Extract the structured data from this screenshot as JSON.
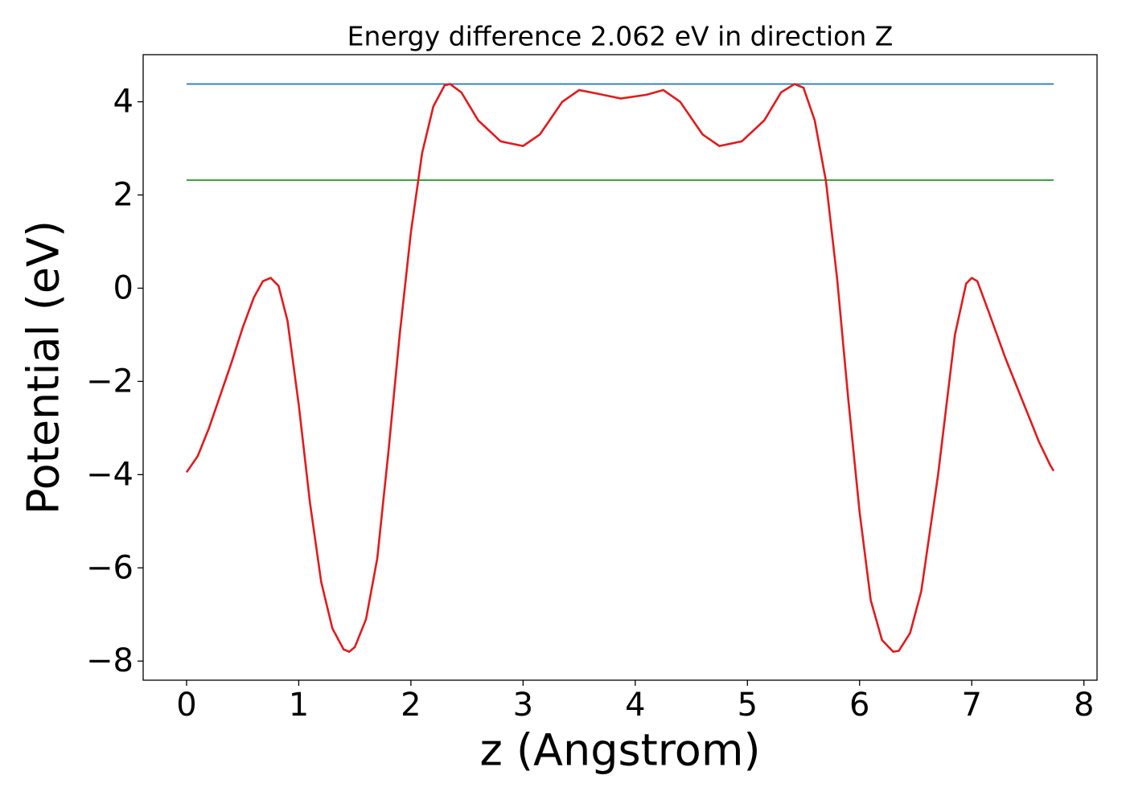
{
  "chart_data": {
    "type": "line",
    "title": "Energy difference 2.062 eV in direction Z",
    "xlabel": "z (Angstrom)",
    "ylabel": "Potential (eV)",
    "xlim": [
      -0.387,
      8.117
    ],
    "ylim": [
      -8.41,
      5.01
    ],
    "xticks": [
      0,
      1,
      2,
      3,
      4,
      5,
      6,
      7,
      8
    ],
    "yticks": [
      {
        "value": -8,
        "label": "−8"
      },
      {
        "value": -6,
        "label": "−6"
      },
      {
        "value": -4,
        "label": "−4"
      },
      {
        "value": -2,
        "label": "−2"
      },
      0,
      2,
      4
    ],
    "grid": false,
    "series": [
      {
        "color": "#1f77b4",
        "x": [
          0,
          7.73
        ],
        "values": [
          4.38,
          4.38
        ]
      },
      {
        "color": "#2ca02c",
        "x": [
          0,
          7.73
        ],
        "values": [
          2.318,
          2.318
        ]
      },
      {
        "color": "#e31a1c",
        "x": [
          0,
          0.1,
          0.2,
          0.3,
          0.4,
          0.5,
          0.6,
          0.68,
          0.75,
          0.82,
          0.9,
          1.0,
          1.1,
          1.2,
          1.3,
          1.4,
          1.45,
          1.5,
          1.6,
          1.7,
          1.8,
          1.9,
          2.0,
          2.1,
          2.2,
          2.3,
          2.35,
          2.45,
          2.6,
          2.8,
          3.0,
          3.15,
          3.35,
          3.5,
          3.65,
          3.87,
          4.1,
          4.25,
          4.4,
          4.6,
          4.75,
          4.95,
          5.15,
          5.3,
          5.42,
          5.5,
          5.6,
          5.7,
          5.8,
          5.9,
          6.0,
          6.1,
          6.2,
          6.3,
          6.35,
          6.45,
          6.55,
          6.7,
          6.85,
          6.95,
          7.0,
          7.05,
          7.15,
          7.3,
          7.45,
          7.6,
          7.7,
          7.73
        ],
        "values": [
          -3.95,
          -3.6,
          -3.0,
          -2.3,
          -1.6,
          -0.85,
          -0.2,
          0.15,
          0.22,
          0.05,
          -0.7,
          -2.5,
          -4.6,
          -6.3,
          -7.3,
          -7.75,
          -7.8,
          -7.7,
          -7.1,
          -5.8,
          -3.5,
          -1.0,
          1.2,
          2.9,
          3.9,
          4.35,
          4.38,
          4.2,
          3.6,
          3.15,
          3.05,
          3.3,
          4.0,
          4.25,
          4.18,
          4.07,
          4.15,
          4.25,
          4.0,
          3.3,
          3.05,
          3.15,
          3.6,
          4.2,
          4.38,
          4.3,
          3.6,
          2.3,
          0.2,
          -2.4,
          -4.8,
          -6.7,
          -7.55,
          -7.8,
          -7.78,
          -7.4,
          -6.5,
          -4.0,
          -1.0,
          0.1,
          0.22,
          0.15,
          -0.5,
          -1.5,
          -2.4,
          -3.3,
          -3.8,
          -3.92
        ]
      }
    ]
  }
}
